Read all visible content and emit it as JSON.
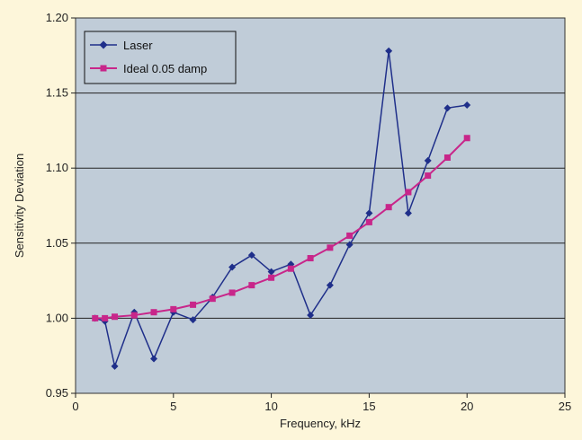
{
  "colors": {
    "page_background": "#fdf6da",
    "plot_background": "#c0ccd8",
    "gridline": "#222222",
    "laser": "#1f2f8a",
    "ideal": "#c8268a"
  },
  "chart_data": {
    "type": "line",
    "title": "",
    "xlabel": "Frequency, kHz",
    "ylabel": "Sensitivity Deviation",
    "xlim": [
      0,
      25
    ],
    "ylim": [
      0.95,
      1.2
    ],
    "x_ticks": [
      0,
      5,
      10,
      15,
      20,
      25
    ],
    "x_tick_labels": [
      "0",
      "5",
      "10",
      "15",
      "20",
      "25"
    ],
    "y_ticks": [
      0.95,
      1.0,
      1.05,
      1.1,
      1.15,
      1.2
    ],
    "y_tick_labels": [
      "0.95",
      "1.00",
      "1.05",
      "1.10",
      "1.15",
      "1.20"
    ],
    "grid": "horizontal",
    "legend_position": "top-left",
    "series": [
      {
        "name": "Laser",
        "marker": "diamond",
        "color": "#1f2f8a",
        "x": [
          1,
          1.5,
          2,
          3,
          4,
          5,
          6,
          7,
          8,
          9,
          10,
          11,
          12,
          13,
          14,
          15,
          16,
          17,
          18,
          19,
          20
        ],
        "y": [
          1.0,
          0.998,
          0.968,
          1.004,
          0.973,
          1.004,
          0.999,
          1.014,
          1.034,
          1.042,
          1.031,
          1.036,
          1.002,
          1.022,
          1.049,
          1.07,
          1.178,
          1.07,
          1.105,
          1.14,
          1.142
        ]
      },
      {
        "name": "Ideal 0.05 damp",
        "marker": "square",
        "color": "#c8268a",
        "x": [
          1,
          1.5,
          2,
          3,
          4,
          5,
          6,
          7,
          8,
          9,
          10,
          11,
          12,
          13,
          14,
          15,
          16,
          17,
          18,
          19,
          20
        ],
        "y": [
          1.0,
          1.0,
          1.001,
          1.002,
          1.004,
          1.006,
          1.009,
          1.013,
          1.017,
          1.022,
          1.027,
          1.033,
          1.04,
          1.047,
          1.055,
          1.064,
          1.074,
          1.084,
          1.095,
          1.107,
          1.12
        ]
      }
    ]
  }
}
